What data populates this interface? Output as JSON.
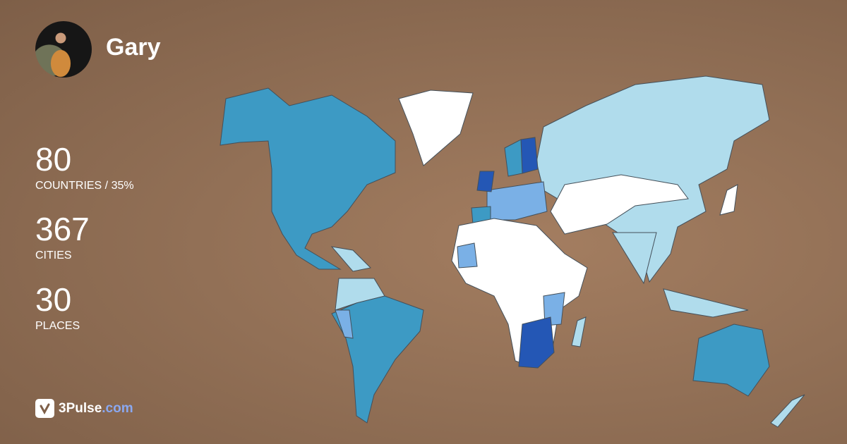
{
  "user": {
    "name": "Gary"
  },
  "stats": [
    {
      "value": "80",
      "label": "COUNTRIES / 35%"
    },
    {
      "value": "367",
      "label": "CITIES"
    },
    {
      "value": "30",
      "label": "PLACES"
    }
  ],
  "brand": {
    "name": "3Pulse",
    "suffix": ".com"
  },
  "map": {
    "colors": {
      "unvisited": "#ffffff",
      "low": "#b0dcec",
      "mid_light": "#7ab0e6",
      "mid": "#3d9ac4",
      "high": "#2457b5"
    }
  }
}
